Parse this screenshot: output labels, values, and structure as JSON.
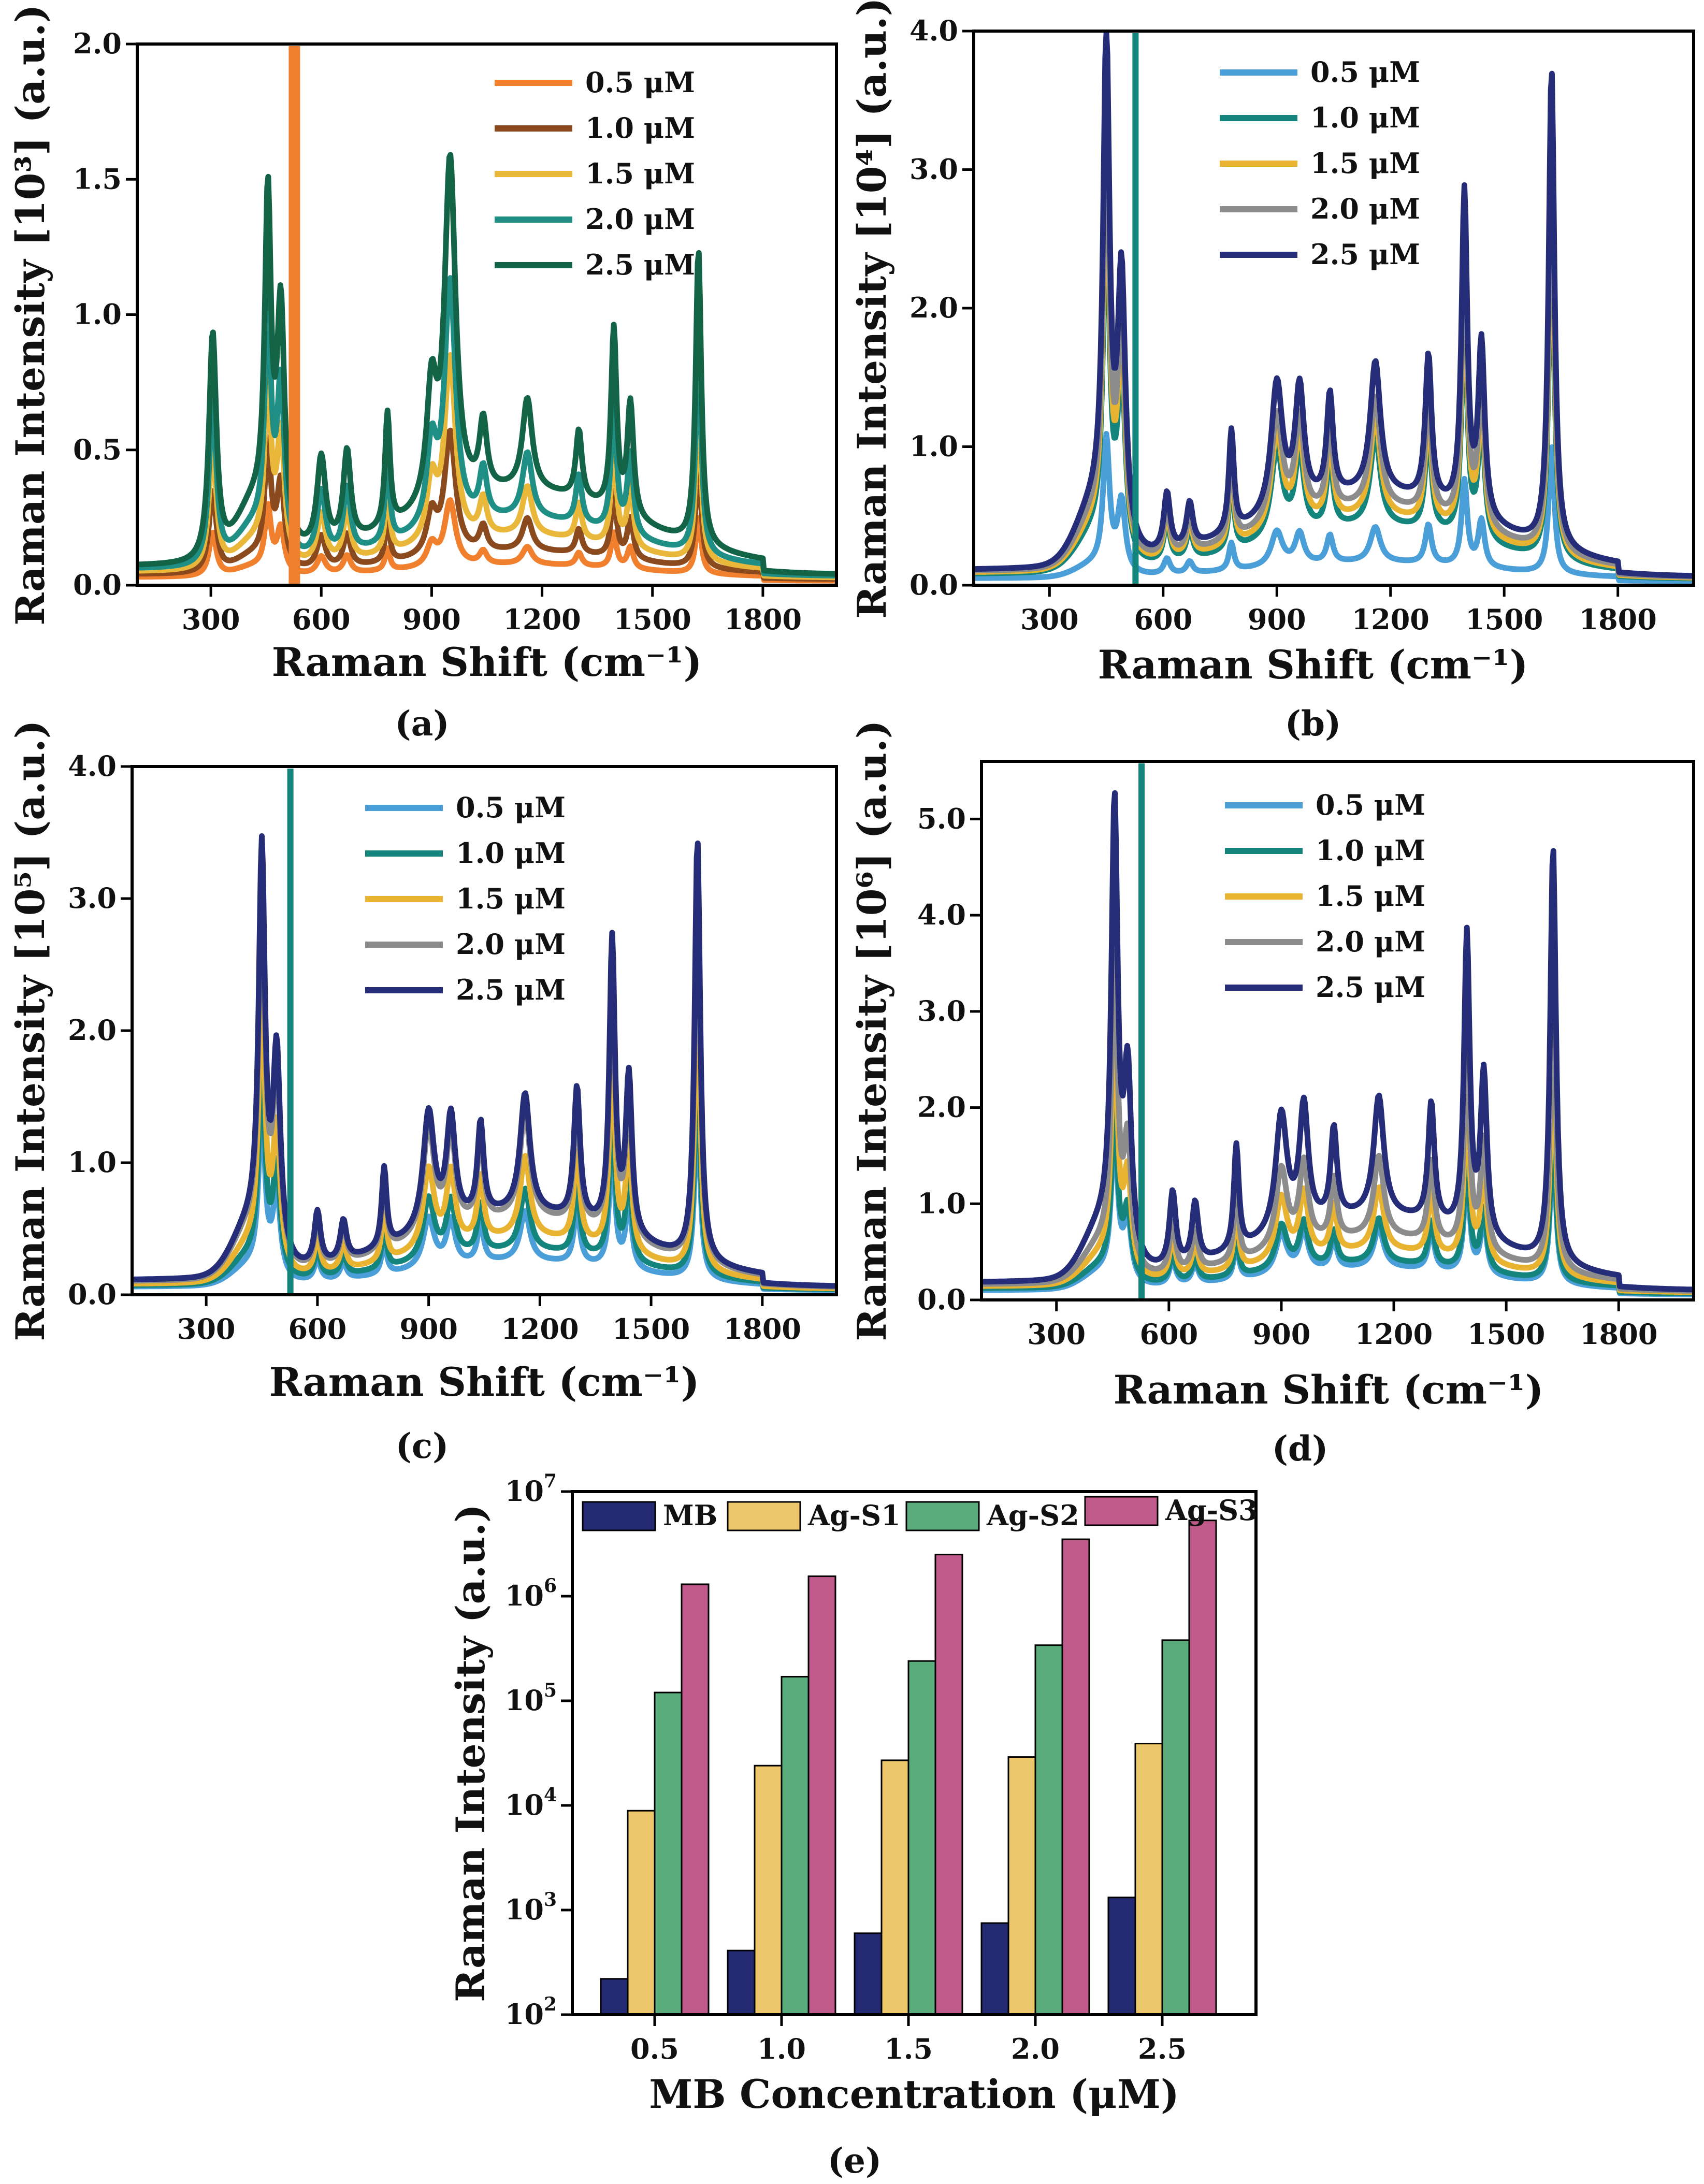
{
  "colors": {
    "a": [
      "#f07f2e",
      "#8b4a1e",
      "#e9b739",
      "#1f8f86",
      "#136446"
    ],
    "spec": [
      "#4a9fd8",
      "#14857d",
      "#e8b331",
      "#8c8c8c",
      "#262d78"
    ],
    "bars": [
      "#232a72",
      "#ecc76b",
      "#5aac7c",
      "#c05a8b"
    ]
  },
  "chart_data": [
    {
      "id": "a",
      "type": "line",
      "panel_label": "(a)",
      "xlabel": "Raman Shift (cm⁻¹)",
      "ylabel": "Raman Intensity [10³] (a.u.)",
      "xlim": [
        100,
        2000
      ],
      "ylim": [
        0,
        2.0
      ],
      "xticks": [
        300,
        600,
        900,
        1200,
        1500,
        1800
      ],
      "xticklabels": [
        "300",
        "600",
        "900",
        "1200",
        "1500",
        "1800"
      ],
      "yticks": [
        0,
        0.5,
        1.0,
        1.5,
        2.0
      ],
      "yticklabels": [
        "0.0",
        "0.5",
        "1.0",
        "1.5",
        "2.0"
      ],
      "legend_position": "top-right",
      "series": [
        {
          "name": "0.5 μM",
          "base": 0.03,
          "band": 0.06,
          "scale": 0.16
        },
        {
          "name": "1.0 μM",
          "base": 0.04,
          "band": 0.11,
          "scale": 0.3
        },
        {
          "name": "1.5 μM",
          "base": 0.05,
          "band": 0.17,
          "scale": 0.45
        },
        {
          "name": "2.0 μM",
          "base": 0.06,
          "band": 0.24,
          "scale": 0.6
        },
        {
          "name": "2.5 μM",
          "base": 0.07,
          "band": 0.36,
          "scale": 0.84
        }
      ],
      "spike": {
        "x": 527,
        "top": 2.0
      },
      "peaks": [
        [
          305,
          1.0,
          12
        ],
        [
          455,
          1.4,
          10
        ],
        [
          490,
          1.0,
          12
        ],
        [
          600,
          0.4,
          14
        ],
        [
          670,
          0.4,
          12
        ],
        [
          780,
          0.5,
          8
        ],
        [
          900,
          0.5,
          16
        ],
        [
          950,
          1.5,
          18
        ],
        [
          1040,
          0.3,
          12
        ],
        [
          1160,
          0.4,
          16
        ],
        [
          1300,
          0.3,
          10
        ],
        [
          1395,
          0.8,
          9
        ],
        [
          1440,
          0.5,
          10
        ],
        [
          1625,
          1.3,
          9
        ]
      ]
    },
    {
      "id": "b",
      "type": "line",
      "panel_label": "(b)",
      "xlabel": "Raman Shift (cm⁻¹)",
      "ylabel": "Raman Intensity [10⁴] (a.u.)",
      "xlim": [
        100,
        2000
      ],
      "ylim": [
        0,
        4.0
      ],
      "xticks": [
        300,
        600,
        900,
        1200,
        1500,
        1800
      ],
      "xticklabels": [
        "300",
        "600",
        "900",
        "1200",
        "1500",
        "1800"
      ],
      "yticks": [
        0,
        1,
        2,
        3,
        4
      ],
      "yticklabels": [
        "0.0",
        "1.0",
        "2.0",
        "3.0",
        "4.0"
      ],
      "legend_position": "top-right",
      "series": [
        {
          "name": "0.5 μM",
          "base": 0.05,
          "band": 0.15,
          "scale": 0.28
        },
        {
          "name": "1.0 μM",
          "base": 0.08,
          "band": 0.45,
          "scale": 0.72
        },
        {
          "name": "1.5 μM",
          "base": 0.09,
          "band": 0.52,
          "scale": 0.8
        },
        {
          "name": "2.0 μM",
          "base": 0.1,
          "band": 0.6,
          "scale": 0.88
        },
        {
          "name": "2.5 μM",
          "base": 0.11,
          "band": 0.72,
          "scale": 1.05
        }
      ],
      "spike": {
        "x": 527,
        "top": 4.0
      },
      "peaks": [
        [
          450,
          3.3,
          10
        ],
        [
          490,
          1.8,
          12
        ],
        [
          610,
          0.4,
          10
        ],
        [
          670,
          0.3,
          10
        ],
        [
          780,
          0.7,
          8
        ],
        [
          900,
          0.9,
          18
        ],
        [
          960,
          0.8,
          14
        ],
        [
          1040,
          0.7,
          10
        ],
        [
          1160,
          0.9,
          16
        ],
        [
          1300,
          1.0,
          10
        ],
        [
          1395,
          2.2,
          9
        ],
        [
          1440,
          1.2,
          10
        ],
        [
          1625,
          3.3,
          9
        ]
      ]
    },
    {
      "id": "c",
      "type": "line",
      "panel_label": "(c)",
      "xlabel": "Raman Shift (cm⁻¹)",
      "ylabel": "Raman Intensity [10⁵] (a.u.)",
      "xlim": [
        100,
        2000
      ],
      "ylim": [
        0,
        4.0
      ],
      "xticks": [
        300,
        600,
        900,
        1200,
        1500,
        1800
      ],
      "xticklabels": [
        "300",
        "600",
        "900",
        "1200",
        "1500",
        "1800"
      ],
      "yticks": [
        0,
        1,
        2,
        3,
        4
      ],
      "yticklabels": [
        "0.0",
        "1.0",
        "2.0",
        "3.0",
        "4.0"
      ],
      "legend_position": "top-right",
      "series": [
        {
          "name": "0.5 μM",
          "base": 0.06,
          "band": 0.25,
          "scale": 0.42
        },
        {
          "name": "1.0 μM",
          "base": 0.07,
          "band": 0.34,
          "scale": 0.52
        },
        {
          "name": "1.5 μM",
          "base": 0.08,
          "band": 0.46,
          "scale": 0.68
        },
        {
          "name": "2.0 μM",
          "base": 0.1,
          "band": 0.62,
          "scale": 0.92
        },
        {
          "name": "2.5 μM",
          "base": 0.11,
          "band": 0.66,
          "scale": 1.0
        }
      ],
      "spike": {
        "x": 527,
        "top": 4.0
      },
      "peaks": [
        [
          450,
          2.9,
          10
        ],
        [
          490,
          1.5,
          12
        ],
        [
          600,
          0.4,
          10
        ],
        [
          670,
          0.3,
          10
        ],
        [
          780,
          0.6,
          8
        ],
        [
          900,
          0.9,
          18
        ],
        [
          960,
          0.8,
          14
        ],
        [
          1040,
          0.7,
          10
        ],
        [
          1160,
          0.9,
          16
        ],
        [
          1300,
          1.0,
          10
        ],
        [
          1395,
          2.2,
          9
        ],
        [
          1440,
          1.2,
          10
        ],
        [
          1625,
          3.2,
          9
        ]
      ]
    },
    {
      "id": "d",
      "type": "line",
      "panel_label": "(d)",
      "xlabel": "Raman Shift (cm⁻¹)",
      "ylabel": "Raman Intensity [10⁶] (a.u.)",
      "xlim": [
        100,
        2000
      ],
      "ylim": [
        0,
        5.6
      ],
      "xticks": [
        300,
        600,
        900,
        1200,
        1500,
        1800
      ],
      "xticklabels": [
        "300",
        "600",
        "900",
        "1200",
        "1500",
        "1800"
      ],
      "yticks": [
        0,
        1,
        2,
        3,
        4,
        5
      ],
      "yticklabels": [
        "0.0",
        "1.0",
        "2.0",
        "3.0",
        "4.0",
        "5.0"
      ],
      "legend_position": "top-right",
      "series": [
        {
          "name": "0.5 μM",
          "base": 0.1,
          "band": 0.3,
          "scale": 0.52
        },
        {
          "name": "1.0 μM",
          "base": 0.12,
          "band": 0.34,
          "scale": 0.58
        },
        {
          "name": "1.5 μM",
          "base": 0.14,
          "band": 0.48,
          "scale": 0.82
        },
        {
          "name": "2.0 μM",
          "base": 0.16,
          "band": 0.64,
          "scale": 1.05
        },
        {
          "name": "2.5 μM",
          "base": 0.18,
          "band": 0.9,
          "scale": 1.55
        }
      ],
      "spike": {
        "x": 527,
        "top": 5.6
      },
      "peaks": [
        [
          455,
          2.9,
          10
        ],
        [
          490,
          1.2,
          12
        ],
        [
          610,
          0.5,
          10
        ],
        [
          670,
          0.4,
          10
        ],
        [
          780,
          0.7,
          8
        ],
        [
          900,
          0.8,
          18
        ],
        [
          960,
          0.8,
          14
        ],
        [
          1040,
          0.6,
          10
        ],
        [
          1160,
          0.8,
          16
        ],
        [
          1300,
          0.8,
          10
        ],
        [
          1395,
          2.0,
          9
        ],
        [
          1440,
          1.1,
          10
        ],
        [
          1625,
          2.8,
          9
        ]
      ]
    },
    {
      "id": "e",
      "type": "bar",
      "panel_label": "(e)",
      "xlabel": "MB Concentration (μM)",
      "ylabel": "Raman Intensity (a.u.)",
      "yscale": "log",
      "ylim": [
        100,
        10000000
      ],
      "ytick_exponents": [
        "2",
        "3",
        "4",
        "5",
        "6",
        "7"
      ],
      "categories": [
        "0.5",
        "1.0",
        "1.5",
        "2.0",
        "2.5"
      ],
      "legend_position": "top",
      "series": [
        {
          "name": "MB",
          "values": [
            220,
            410,
            600,
            750,
            1320
          ]
        },
        {
          "name": "Ag-S1",
          "values": [
            8900,
            24000,
            27000,
            29000,
            39000
          ]
        },
        {
          "name": "Ag-S2",
          "values": [
            120000,
            170000,
            240000,
            340000,
            380000
          ]
        },
        {
          "name": "Ag-S3",
          "values": [
            1300000,
            1550000,
            2500000,
            3500000,
            5300000
          ]
        }
      ]
    }
  ]
}
